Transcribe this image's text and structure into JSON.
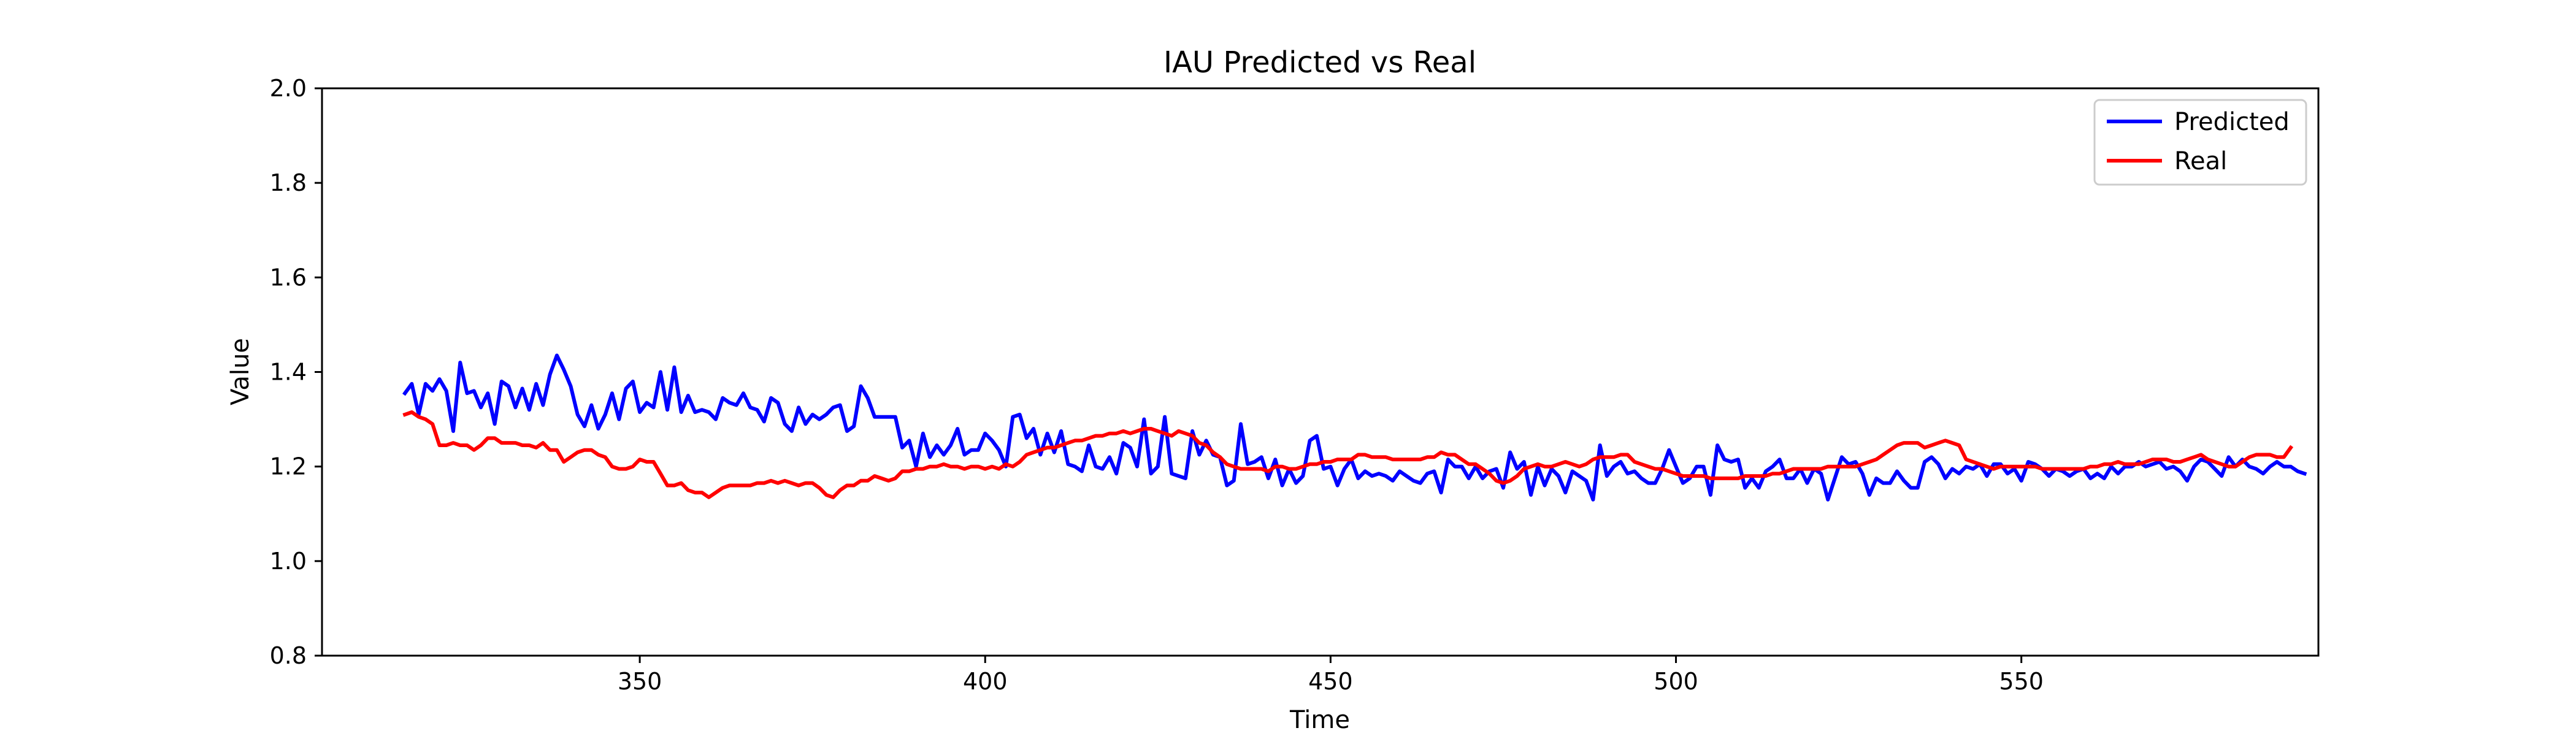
{
  "chart_data": {
    "type": "line",
    "title": "IAU Predicted vs Real",
    "xlabel": "Time",
    "ylabel": "Value",
    "xlim": [
      304,
      593
    ],
    "ylim": [
      0.8,
      2.0
    ],
    "xticks": [
      350,
      400,
      450,
      500,
      550
    ],
    "yticks": [
      0.8,
      1.0,
      1.2,
      1.4,
      1.6,
      1.8,
      2.0
    ],
    "ytick_labels": [
      "0.8",
      "1.0",
      "1.2",
      "1.4",
      "1.6",
      "1.8",
      "2.0"
    ],
    "grid": false,
    "legend_position": "upper right",
    "x_start": 316,
    "x_step": 1,
    "series": [
      {
        "name": "Predicted",
        "color": "#0000ff",
        "values": [
          1.355,
          1.375,
          1.31,
          1.375,
          1.36,
          1.385,
          1.36,
          1.275,
          1.42,
          1.355,
          1.36,
          1.325,
          1.355,
          1.29,
          1.38,
          1.37,
          1.325,
          1.365,
          1.32,
          1.375,
          1.33,
          1.395,
          1.435,
          1.405,
          1.37,
          1.31,
          1.285,
          1.33,
          1.28,
          1.31,
          1.355,
          1.3,
          1.365,
          1.38,
          1.315,
          1.335,
          1.325,
          1.4,
          1.32,
          1.41,
          1.315,
          1.35,
          1.315,
          1.32,
          1.315,
          1.3,
          1.345,
          1.335,
          1.33,
          1.355,
          1.325,
          1.32,
          1.295,
          1.345,
          1.335,
          1.29,
          1.275,
          1.325,
          1.29,
          1.31,
          1.3,
          1.31,
          1.325,
          1.33,
          1.275,
          1.285,
          1.37,
          1.345,
          1.305,
          1.305,
          1.305,
          1.305,
          1.24,
          1.255,
          1.2,
          1.27,
          1.22,
          1.245,
          1.225,
          1.245,
          1.28,
          1.225,
          1.235,
          1.235,
          1.27,
          1.255,
          1.235,
          1.2,
          1.305,
          1.31,
          1.26,
          1.28,
          1.225,
          1.27,
          1.23,
          1.275,
          1.205,
          1.2,
          1.19,
          1.245,
          1.2,
          1.195,
          1.22,
          1.185,
          1.25,
          1.24,
          1.2,
          1.3,
          1.185,
          1.2,
          1.305,
          1.185,
          1.18,
          1.175,
          1.275,
          1.225,
          1.255,
          1.225,
          1.22,
          1.16,
          1.17,
          1.29,
          1.205,
          1.21,
          1.22,
          1.175,
          1.215,
          1.16,
          1.195,
          1.165,
          1.18,
          1.255,
          1.265,
          1.195,
          1.2,
          1.16,
          1.195,
          1.215,
          1.175,
          1.19,
          1.18,
          1.185,
          1.18,
          1.17,
          1.19,
          1.18,
          1.17,
          1.165,
          1.185,
          1.19,
          1.145,
          1.215,
          1.2,
          1.2,
          1.175,
          1.2,
          1.175,
          1.19,
          1.195,
          1.155,
          1.23,
          1.195,
          1.21,
          1.14,
          1.2,
          1.16,
          1.195,
          1.18,
          1.145,
          1.19,
          1.18,
          1.17,
          1.13,
          1.245,
          1.18,
          1.2,
          1.21,
          1.185,
          1.19,
          1.175,
          1.165,
          1.165,
          1.195,
          1.235,
          1.2,
          1.165,
          1.175,
          1.2,
          1.2,
          1.14,
          1.245,
          1.215,
          1.21,
          1.215,
          1.155,
          1.175,
          1.155,
          1.19,
          1.2,
          1.215,
          1.175,
          1.175,
          1.195,
          1.165,
          1.195,
          1.185,
          1.13,
          1.175,
          1.22,
          1.205,
          1.21,
          1.185,
          1.14,
          1.175,
          1.165,
          1.165,
          1.19,
          1.17,
          1.155,
          1.155,
          1.21,
          1.22,
          1.205,
          1.175,
          1.195,
          1.185,
          1.2,
          1.195,
          1.205,
          1.18,
          1.205,
          1.205,
          1.185,
          1.195,
          1.17,
          1.21,
          1.205,
          1.195,
          1.18,
          1.195,
          1.19,
          1.18,
          1.19,
          1.195,
          1.175,
          1.185,
          1.175,
          1.2,
          1.185,
          1.2,
          1.2,
          1.21,
          1.2,
          1.205,
          1.21,
          1.195,
          1.2,
          1.19,
          1.17,
          1.2,
          1.215,
          1.21,
          1.195,
          1.18,
          1.22,
          1.2,
          1.215,
          1.2,
          1.195,
          1.185,
          1.2,
          1.21,
          1.2,
          1.2,
          1.19,
          1.185
        ]
      },
      {
        "name": "Real",
        "color": "#ff0000",
        "values": [
          1.31,
          1.315,
          1.305,
          1.3,
          1.29,
          1.245,
          1.245,
          1.25,
          1.245,
          1.245,
          1.235,
          1.245,
          1.26,
          1.26,
          1.25,
          1.25,
          1.25,
          1.245,
          1.245,
          1.24,
          1.25,
          1.235,
          1.235,
          1.21,
          1.22,
          1.23,
          1.235,
          1.235,
          1.225,
          1.22,
          1.2,
          1.195,
          1.195,
          1.2,
          1.215,
          1.21,
          1.21,
          1.185,
          1.16,
          1.16,
          1.165,
          1.15,
          1.145,
          1.145,
          1.135,
          1.145,
          1.155,
          1.16,
          1.16,
          1.16,
          1.16,
          1.165,
          1.165,
          1.17,
          1.165,
          1.17,
          1.165,
          1.16,
          1.165,
          1.165,
          1.155,
          1.14,
          1.135,
          1.15,
          1.16,
          1.16,
          1.17,
          1.17,
          1.18,
          1.175,
          1.17,
          1.175,
          1.19,
          1.19,
          1.195,
          1.195,
          1.2,
          1.2,
          1.205,
          1.2,
          1.2,
          1.195,
          1.2,
          1.2,
          1.195,
          1.2,
          1.195,
          1.205,
          1.2,
          1.21,
          1.225,
          1.23,
          1.235,
          1.24,
          1.24,
          1.245,
          1.25,
          1.255,
          1.255,
          1.26,
          1.265,
          1.265,
          1.27,
          1.27,
          1.275,
          1.27,
          1.275,
          1.28,
          1.28,
          1.275,
          1.27,
          1.265,
          1.275,
          1.27,
          1.265,
          1.25,
          1.245,
          1.23,
          1.22,
          1.205,
          1.2,
          1.195,
          1.195,
          1.195,
          1.195,
          1.19,
          1.2,
          1.2,
          1.195,
          1.195,
          1.2,
          1.205,
          1.205,
          1.21,
          1.21,
          1.215,
          1.215,
          1.215,
          1.225,
          1.225,
          1.22,
          1.22,
          1.22,
          1.215,
          1.215,
          1.215,
          1.215,
          1.215,
          1.22,
          1.22,
          1.23,
          1.225,
          1.225,
          1.215,
          1.205,
          1.205,
          1.195,
          1.185,
          1.17,
          1.165,
          1.17,
          1.18,
          1.195,
          1.2,
          1.205,
          1.2,
          1.2,
          1.205,
          1.21,
          1.205,
          1.2,
          1.205,
          1.215,
          1.22,
          1.22,
          1.22,
          1.225,
          1.225,
          1.21,
          1.205,
          1.2,
          1.195,
          1.195,
          1.19,
          1.185,
          1.18,
          1.18,
          1.18,
          1.18,
          1.175,
          1.175,
          1.175,
          1.175,
          1.175,
          1.18,
          1.18,
          1.18,
          1.18,
          1.185,
          1.185,
          1.19,
          1.195,
          1.195,
          1.195,
          1.195,
          1.195,
          1.2,
          1.2,
          1.2,
          1.2,
          1.2,
          1.205,
          1.21,
          1.215,
          1.225,
          1.235,
          1.245,
          1.25,
          1.25,
          1.25,
          1.24,
          1.245,
          1.25,
          1.255,
          1.25,
          1.245,
          1.215,
          1.21,
          1.205,
          1.2,
          1.195,
          1.2,
          1.2,
          1.2,
          1.2,
          1.2,
          1.2,
          1.195,
          1.195,
          1.195,
          1.195,
          1.195,
          1.195,
          1.195,
          1.2,
          1.2,
          1.205,
          1.205,
          1.21,
          1.205,
          1.205,
          1.205,
          1.21,
          1.215,
          1.215,
          1.215,
          1.21,
          1.21,
          1.215,
          1.22,
          1.225,
          1.215,
          1.21,
          1.205,
          1.2,
          1.2,
          1.21,
          1.22,
          1.225,
          1.225,
          1.225,
          1.22,
          1.22,
          1.24
        ]
      }
    ]
  }
}
